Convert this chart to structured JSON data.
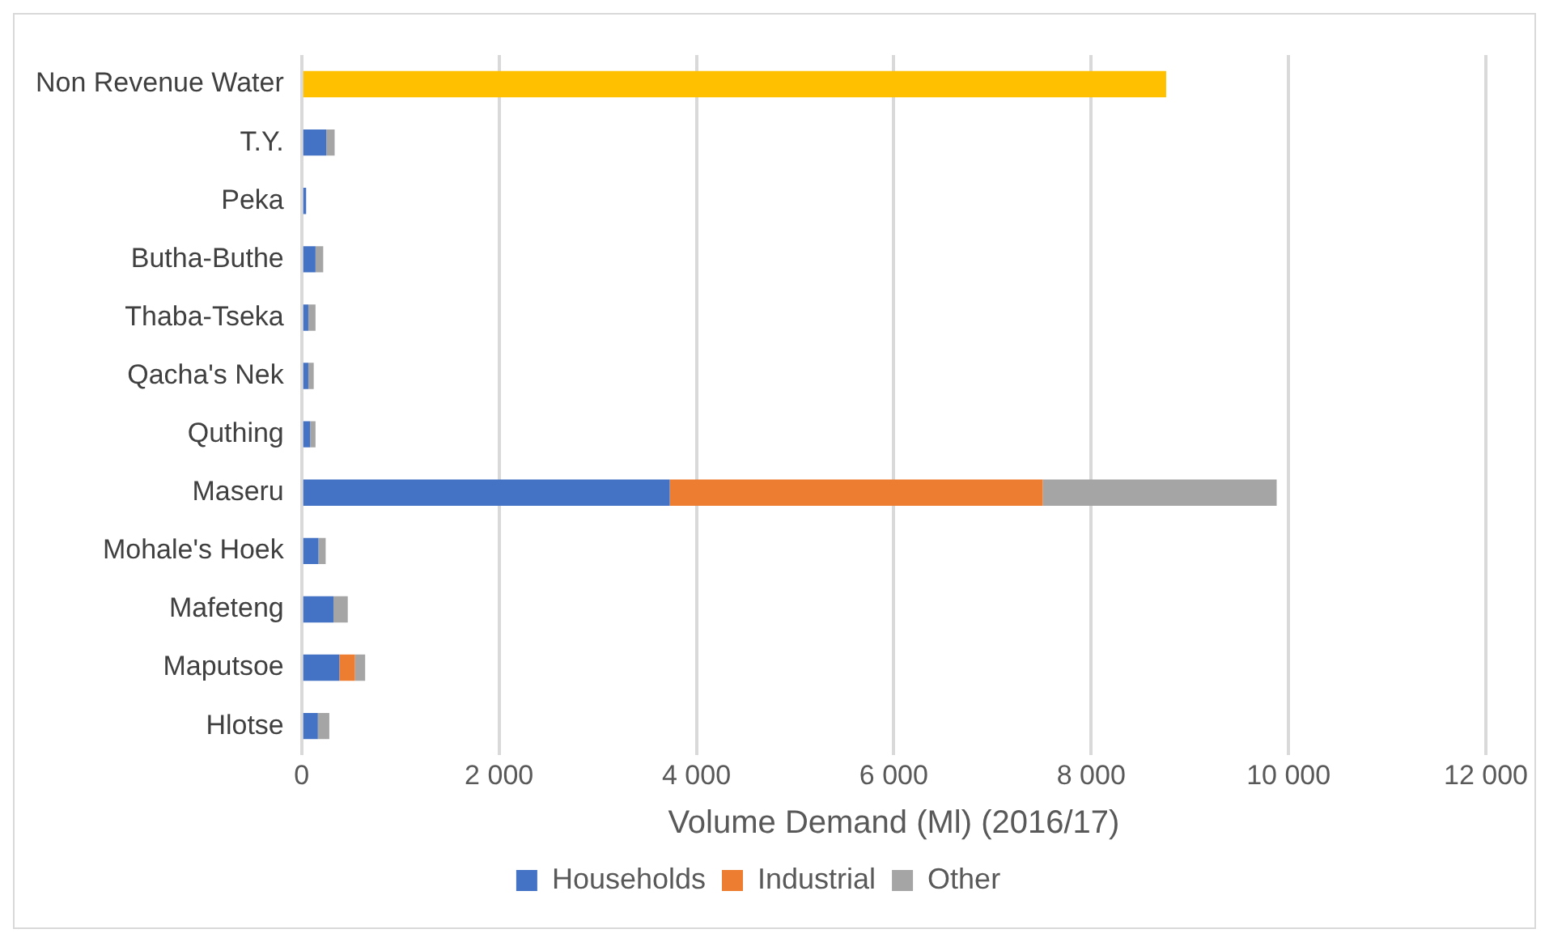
{
  "chart_data": {
    "type": "bar",
    "orientation": "horizontal",
    "stacked": true,
    "xlabel": "Volume Demand (Ml) (2016/17)",
    "categories": [
      "Non Revenue Water",
      "T.Y.",
      "Peka",
      "Butha-Buthe",
      "Thaba-Tseka",
      "Qacha's Nek",
      "Quthing",
      "Maseru",
      "Mohale's Hoek",
      "Mafeteng",
      "Maputsoe",
      "Hlotse"
    ],
    "series": [
      {
        "name": "Households",
        "color": "#4472c4",
        "values": [
          null,
          249,
          45,
          140,
          67,
          67,
          85,
          3730,
          170,
          322,
          382,
          164
        ]
      },
      {
        "name": "Industrial",
        "color": "#ed7d31",
        "values": [
          null,
          null,
          null,
          null,
          null,
          null,
          null,
          3780,
          null,
          null,
          158,
          null
        ]
      },
      {
        "name": "Other",
        "color": "#a5a5a5",
        "values": [
          null,
          85,
          null,
          78,
          73,
          55,
          55,
          2370,
          73,
          145,
          103,
          116
        ]
      },
      {
        "color": "#ffc000",
        "values": [
          8760,
          null,
          null,
          null,
          null,
          null,
          null,
          null,
          null,
          null,
          null,
          null
        ]
      }
    ],
    "xlim": [
      0,
      12000
    ],
    "xticks": [
      {
        "value": 0,
        "label": "0"
      },
      {
        "value": 2000,
        "label": "2 000"
      },
      {
        "value": 4000,
        "label": "4 000"
      },
      {
        "value": 6000,
        "label": "6 000"
      },
      {
        "value": 8000,
        "label": "8 000"
      },
      {
        "value": 10000,
        "label": "10 000"
      },
      {
        "value": 12000,
        "label": "12 000"
      }
    ],
    "grid": "x",
    "legend": "bottom"
  }
}
